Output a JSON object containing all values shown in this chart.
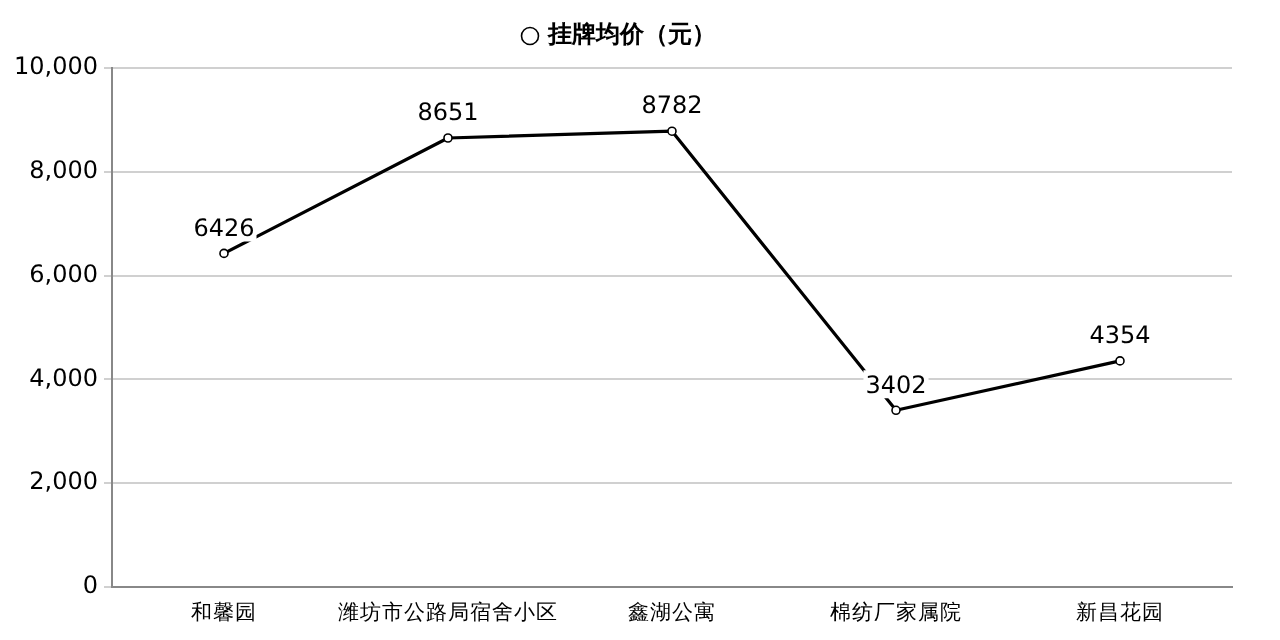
{
  "chart_data": {
    "type": "line",
    "categories": [
      "和馨园",
      "潍坊市公路局宿舍小区",
      "鑫湖公寓",
      "棉纺厂家属院",
      "新昌花园"
    ],
    "series": [
      {
        "name": "挂牌均价（元）",
        "color": "#000000",
        "values": [
          6426,
          8651,
          8782,
          3402,
          4354
        ]
      }
    ],
    "ylim": [
      0,
      10000
    ],
    "yticks": [
      {
        "value": 0,
        "label": "0"
      },
      {
        "value": 2000,
        "label": "2,000"
      },
      {
        "value": 4000,
        "label": "4,000"
      },
      {
        "value": 6000,
        "label": "6,000"
      },
      {
        "value": 8000,
        "label": "8,000"
      },
      {
        "value": 10000,
        "label": "10,000"
      }
    ],
    "grid": "y",
    "legend": "top",
    "marker": "circle",
    "data_labels": true
  }
}
